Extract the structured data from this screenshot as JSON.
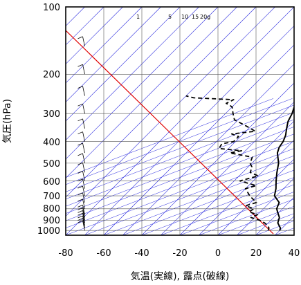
{
  "chart_data": {
    "type": "line",
    "xlabel": "気温(実線), 露点(破線)",
    "ylabel": "気圧(hPa)",
    "x_ticks": [
      -80,
      -60,
      -40,
      -20,
      0,
      20,
      40
    ],
    "y_ticks": [
      100,
      200,
      300,
      400,
      500,
      600,
      700,
      800,
      900,
      1000
    ],
    "xlim": [
      -80,
      40
    ],
    "ylim": [
      1050,
      100
    ],
    "y_scale": "log",
    "grid": true,
    "skew": true,
    "mixing_ratio_labels": [
      "1",
      "5",
      "10",
      "15",
      "20g"
    ],
    "colors": {
      "temperature": "#000000",
      "dewpoint": "#000000",
      "reference_line": "#e00000",
      "background_lines": "#2222dd",
      "grid": "#555555"
    },
    "series": [
      {
        "style": "solid",
        "p": [
          1000,
          975,
          950,
          925,
          900,
          875,
          850,
          825,
          800,
          775,
          750,
          700,
          650,
          600,
          550,
          500,
          450,
          425,
          400,
          375,
          350,
          325,
          300,
          275,
          250,
          225,
          200,
          190,
          180,
          170,
          160,
          150,
          140,
          130,
          120,
          110,
          100
        ],
        "x": [
          30,
          29,
          27,
          25,
          24,
          23,
          21,
          19,
          17,
          16,
          15,
          9,
          6,
          2,
          -2,
          -6,
          -12,
          -14,
          -15,
          -17,
          -20,
          -23,
          -25,
          -28,
          -31,
          -32,
          -35,
          -37,
          -39,
          -41,
          -43,
          -44,
          -44,
          -43,
          -45,
          -44,
          -43
        ]
      },
      {
        "style": "dashed",
        "p": [
          1000,
          975,
          950,
          925,
          900,
          875,
          850,
          825,
          800,
          775,
          750,
          700,
          650,
          630,
          600,
          570,
          550,
          520,
          500,
          470,
          450,
          440,
          430,
          410,
          400,
          380,
          370,
          360,
          340,
          320,
          300,
          280,
          270,
          260,
          255,
          250
        ],
        "x": [
          24,
          23,
          21,
          18,
          14,
          8,
          10,
          4,
          5,
          -1,
          3,
          -4,
          -10,
          -6,
          -17,
          -10,
          -16,
          -18,
          -21,
          -23,
          -37,
          -32,
          -45,
          -46,
          -41,
          -41,
          -46,
          -35,
          -43,
          -52,
          -56,
          -60,
          -65,
          -63,
          -85,
          -90
        ]
      }
    ]
  }
}
